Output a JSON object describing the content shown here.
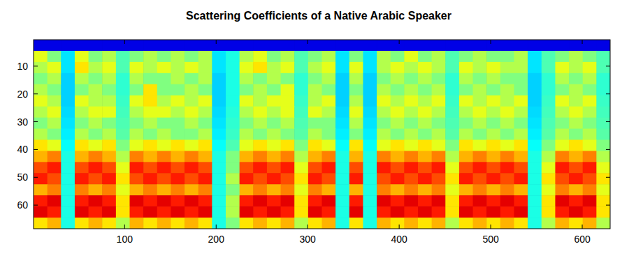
{
  "chart_data": {
    "type": "heatmap",
    "title": "Scattering Coefficients of a Native Arabic Speaker",
    "xlim": [
      0.5,
      630.5
    ],
    "ylim": [
      0.5,
      68.5
    ],
    "xticks": [
      100,
      200,
      300,
      400,
      500,
      600
    ],
    "yticks": [
      10,
      20,
      30,
      40,
      50,
      60
    ],
    "zlim": [
      0,
      10
    ],
    "x": [
      8,
      23,
      38,
      53,
      68,
      83,
      98,
      113,
      128,
      143,
      158,
      173,
      188,
      203,
      218,
      233,
      248,
      263,
      278,
      293,
      308,
      323,
      338,
      353,
      368,
      383,
      398,
      413,
      428,
      443,
      458,
      473,
      488,
      503,
      518,
      533,
      548,
      563,
      578,
      593,
      608,
      623
    ],
    "y": [
      2.5,
      6.5,
      10.5,
      14.5,
      18.5,
      22.5,
      26.5,
      30.5,
      34.5,
      38.5,
      42.5,
      46.5,
      50.5,
      54.5,
      58.5,
      62.5,
      66.5
    ],
    "values": [
      [
        1,
        1,
        1,
        1,
        1,
        1,
        1,
        1,
        1,
        1,
        1,
        1,
        1,
        1,
        1,
        1,
        1,
        1,
        1,
        1,
        1,
        1,
        1,
        1,
        1,
        1,
        1,
        1,
        1,
        1,
        1,
        1,
        1,
        1,
        1,
        1,
        1,
        1,
        1,
        1,
        1,
        1
      ],
      [
        6,
        5,
        3.5,
        6,
        5,
        5.5,
        4.5,
        5,
        5.5,
        5,
        5.5,
        5,
        5.5,
        3.5,
        4,
        5.5,
        6,
        5,
        5.5,
        4.5,
        5,
        5.5,
        3.5,
        5,
        3.5,
        5.5,
        5,
        6,
        5,
        5.5,
        4.5,
        5,
        5.5,
        5,
        5,
        5.5,
        3.5,
        4.5,
        5,
        5.5,
        5,
        4.5
      ],
      [
        5.5,
        6,
        3.5,
        6.5,
        5.5,
        6,
        4.5,
        6,
        5.5,
        6,
        5.5,
        6,
        5.5,
        3.5,
        4,
        6,
        6.5,
        5.5,
        6,
        4.5,
        5.5,
        6,
        3.5,
        6,
        3.5,
        5.5,
        6,
        5.5,
        6,
        5.5,
        4.5,
        6,
        5.5,
        6,
        5.5,
        5.5,
        3.5,
        4.5,
        6,
        5.5,
        6,
        4.5
      ],
      [
        5,
        5.5,
        3.3,
        5.5,
        5,
        5.5,
        4.2,
        5.5,
        5,
        5,
        5.5,
        5,
        5.5,
        3.3,
        4,
        5.5,
        5,
        5.5,
        5,
        4.2,
        5,
        5.5,
        3.3,
        5.5,
        3.3,
        5,
        5.5,
        5,
        5.5,
        5,
        4.2,
        5.5,
        5,
        5.5,
        5,
        5,
        3.3,
        4.2,
        5.5,
        5,
        5.5,
        4.2
      ],
      [
        5.5,
        5,
        3.3,
        5,
        5.5,
        5,
        4.2,
        5,
        6.5,
        5,
        5,
        5.5,
        5,
        3.3,
        4,
        5,
        5.5,
        5,
        6,
        4.2,
        5.5,
        5,
        3.3,
        5,
        3.3,
        5.5,
        5,
        5.5,
        5,
        5.5,
        4.2,
        5,
        5.5,
        5,
        5.5,
        5,
        3.3,
        4.2,
        5,
        5.5,
        5,
        4.2
      ],
      [
        6,
        5.5,
        3.3,
        6,
        5.5,
        5.5,
        4.3,
        6,
        6.5,
        5.5,
        6,
        5.5,
        6,
        3.3,
        4,
        6,
        5.5,
        6,
        6,
        4.3,
        5.5,
        6,
        3.3,
        5.5,
        3.3,
        6,
        5.5,
        6,
        5.5,
        6,
        4.3,
        6,
        5.5,
        6,
        5.5,
        6,
        3.3,
        4.3,
        6,
        5.5,
        6,
        4.3
      ],
      [
        5.5,
        6,
        3.4,
        5.5,
        6,
        6,
        4.4,
        5.5,
        6,
        6,
        5.5,
        6,
        5.5,
        3.4,
        4.1,
        5.5,
        6,
        5.5,
        6,
        4.4,
        6,
        5.5,
        3.4,
        6,
        3.4,
        5.5,
        6,
        5.5,
        6,
        5.5,
        4.4,
        5.5,
        6,
        5.5,
        6,
        5.5,
        3.4,
        4.4,
        5.5,
        6,
        5.5,
        4.4
      ],
      [
        5,
        5.5,
        3.5,
        5,
        5.5,
        5,
        4.5,
        5,
        5.5,
        5,
        5,
        5.5,
        5,
        3.5,
        4.2,
        5,
        5.5,
        5,
        5.5,
        4.5,
        5,
        5,
        3.5,
        5.5,
        3.5,
        5,
        5.5,
        5,
        5.5,
        5,
        4.5,
        5,
        5.5,
        5,
        5.5,
        5,
        3.5,
        4.5,
        5,
        5.5,
        5,
        4.5
      ],
      [
        5.5,
        5,
        3.6,
        5.5,
        5,
        5.5,
        4.6,
        5.5,
        5,
        5.5,
        5,
        5,
        5.5,
        3.6,
        4.3,
        5.5,
        5,
        5.5,
        5,
        4.6,
        5.5,
        5,
        3.6,
        5,
        3.6,
        5.5,
        5,
        5.5,
        5,
        5.5,
        4.6,
        5.5,
        5,
        5.5,
        5,
        5.5,
        3.6,
        4.6,
        5.5,
        5,
        5.5,
        4.6
      ],
      [
        6.5,
        6,
        3.8,
        6.5,
        6,
        6.5,
        5,
        6,
        6.5,
        6,
        6.5,
        6,
        6.5,
        3.8,
        4.5,
        6,
        6.5,
        6,
        6.5,
        5,
        6.5,
        6,
        3.8,
        6.5,
        3.8,
        6,
        6.5,
        6,
        6.5,
        6,
        5,
        6.5,
        6,
        6.5,
        6,
        6.5,
        3.8,
        5,
        6,
        6.5,
        6,
        5
      ],
      [
        7,
        7.5,
        4,
        7,
        7.5,
        7,
        5.5,
        7.5,
        7,
        7.5,
        7,
        7.5,
        7,
        4,
        5,
        7,
        7.5,
        7,
        7.5,
        5.5,
        7,
        7.5,
        4,
        7,
        4,
        7.5,
        7,
        7.5,
        7,
        7.5,
        5.5,
        7,
        7.5,
        7,
        7.5,
        7,
        4,
        5.5,
        7.5,
        7,
        7.5,
        5.5
      ],
      [
        8,
        8.5,
        4,
        8,
        8.5,
        8,
        6,
        8.5,
        8,
        8.5,
        8,
        8.5,
        8,
        4,
        5,
        8,
        8.5,
        8,
        8.5,
        6,
        8,
        8.5,
        4,
        8,
        4,
        8.5,
        8,
        8.5,
        8,
        8.5,
        6,
        8,
        8.5,
        8,
        8.5,
        8,
        4,
        6,
        8.5,
        8,
        8.5,
        6
      ],
      [
        8.5,
        8,
        4,
        8.5,
        8,
        8.5,
        6.5,
        8,
        8.5,
        8,
        8.5,
        8,
        8.5,
        4,
        5.5,
        8.5,
        8,
        8.5,
        8,
        6.5,
        8.5,
        8,
        4,
        8.5,
        4,
        8,
        8.5,
        8,
        8.5,
        8,
        6.5,
        8.5,
        8,
        8.5,
        8,
        8.5,
        4,
        6.5,
        8,
        8.5,
        8,
        6.5
      ],
      [
        7,
        7.5,
        4,
        7.5,
        7,
        7.5,
        6,
        7,
        7.5,
        7,
        7.5,
        7,
        7.5,
        4,
        5,
        7,
        7.5,
        7,
        7.5,
        6,
        7.5,
        7,
        4,
        7,
        4,
        7.5,
        7,
        7.5,
        7,
        7.5,
        6,
        7,
        7.5,
        7,
        7.5,
        7,
        4,
        6,
        7.5,
        7,
        7.5,
        6
      ],
      [
        8.5,
        9,
        4,
        8.5,
        9,
        8.5,
        6.5,
        9,
        8.5,
        9,
        8.5,
        9,
        8.5,
        4,
        5.5,
        8.5,
        9,
        8.5,
        9,
        6.5,
        8.5,
        9,
        4,
        8.5,
        4,
        9,
        8.5,
        9,
        8.5,
        9,
        6.5,
        8.5,
        9,
        8.5,
        9,
        8.5,
        4,
        6.5,
        9,
        8.5,
        9,
        6.5
      ],
      [
        9,
        8.5,
        4,
        9,
        8.5,
        9,
        6.5,
        8.5,
        9,
        8.5,
        9,
        8.5,
        9,
        4,
        5.5,
        9,
        8.5,
        9,
        8.5,
        6.5,
        9,
        8.5,
        4,
        9,
        4,
        8.5,
        9,
        8.5,
        9,
        8.5,
        6.5,
        9,
        8.5,
        9,
        8.5,
        9,
        4,
        6.5,
        8.5,
        9,
        8.5,
        6.5
      ],
      [
        6.5,
        7,
        4,
        6.5,
        7,
        6.5,
        5.5,
        7,
        6.5,
        7,
        6.5,
        7,
        6.5,
        4,
        5,
        6.5,
        7,
        6.5,
        7,
        5.5,
        6.5,
        7,
        4,
        6.5,
        4,
        7,
        6.5,
        7,
        6.5,
        7,
        5.5,
        6.5,
        7,
        6.5,
        7,
        6.5,
        4,
        5.5,
        7,
        6.5,
        7,
        5.5
      ]
    ]
  }
}
